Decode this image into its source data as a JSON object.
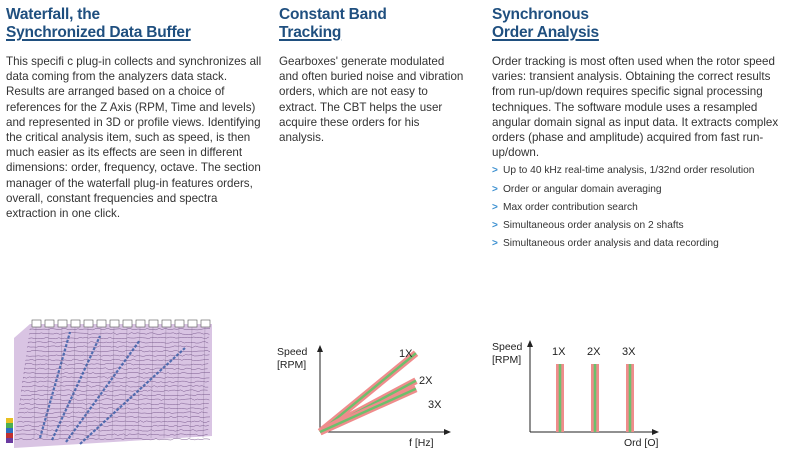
{
  "waterfall": {
    "title_line1": "Waterfall, the",
    "title_line2": "Synchronized Data Buffer",
    "body": "This specifi c plug-in collects and synchronizes all data coming from the analyzers data stack. Results are arranged based on a choice of references for the Z Axis (RPM, Time and levels) and represented in 3D or profile views. Identifying the critical analysis item, such as speed, is then much easier as its effects are seen in different dimensions: order, frequency, octave. The section manager of the waterfall plug-in features orders, overall, constant frequencies and spectra extraction in one click."
  },
  "cbt": {
    "title_line1": "Constant Band",
    "title_line2": "Tracking",
    "body": "Gearboxes' generate modulated and often buried noise and vibration orders, which are not easy to extract. The CBT helps the user acquire these orders for his analysis."
  },
  "soa": {
    "title_line1": "Synchronous",
    "title_line2": "Order Analysis",
    "body": "Order tracking is most often used when the rotor speed varies: transient analysis. Obtaining the correct results from run-up/down requires specific signal processing techniques. The software module uses a resampled angular domain signal as input data. It extracts complex orders (phase and amplitude) acquired from fast run-up/down.",
    "bullets": [
      "Up to 40 kHz real-time analysis, 1/32nd order resolution",
      "Order or angular domain averaging",
      "Max order contribution search",
      "Simultaneous order analysis on 2 shafts",
      "Simultaneous order analysis and data recording"
    ],
    "bullet_marker": ">"
  },
  "chart_data": [
    {
      "type": "line",
      "ylabel_line1": "Speed",
      "ylabel_line2": "[RPM]",
      "xlabel": "f [Hz]",
      "series": [
        {
          "name": "1X",
          "x": [
            0,
            1
          ],
          "y": [
            0,
            1
          ]
        },
        {
          "name": "2X",
          "x": [
            0,
            1
          ],
          "y": [
            0,
            0.5
          ]
        },
        {
          "name": "3X",
          "x": [
            0,
            1
          ],
          "y": [
            0,
            0.333
          ]
        }
      ],
      "grid": false,
      "colors": {
        "band": "#ef8c8c",
        "center": "#6cc06c"
      }
    },
    {
      "type": "bar",
      "ylabel_line1": "Speed",
      "ylabel_line2": "[RPM]",
      "xlabel": "Ord [O]",
      "categories": [
        "1X",
        "2X",
        "3X"
      ],
      "x": [
        1,
        2,
        3
      ],
      "grid": false,
      "colors": {
        "band": "#ef8c8c",
        "center": "#6cc06c"
      }
    }
  ],
  "colors": {
    "heading": "#1f4f7f",
    "bullet_arrow": "#3a8fd0",
    "waterfall_bg": "#d9c4e3",
    "waterfall_trace": "#3b5fa8"
  }
}
